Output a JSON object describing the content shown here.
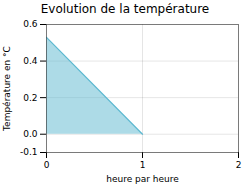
{
  "chart_data": {
    "type": "area",
    "title": "Evolution de la température",
    "xlabel": "heure par heure",
    "ylabel": "Température en °C",
    "x": [
      0,
      1
    ],
    "values": [
      0.53,
      0.0
    ],
    "color": "#5cb8d0",
    "xlim": [
      0,
      2
    ],
    "xticks": [
      0,
      1,
      2
    ],
    "ylim": [
      -0.1,
      0.6
    ],
    "yticks": [
      -0.1,
      {
        "value": 0,
        "label": "0.0"
      },
      0.2,
      0.4,
      0.6
    ],
    "grid": true
  }
}
